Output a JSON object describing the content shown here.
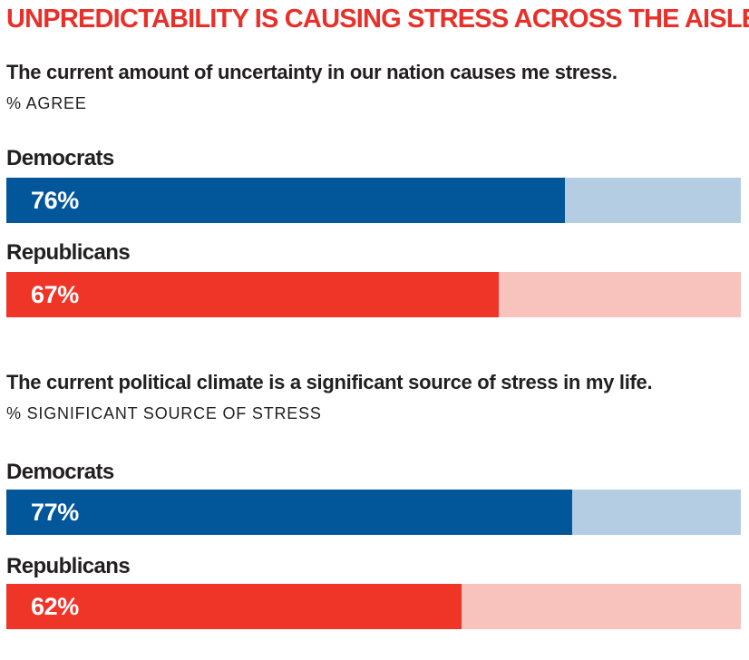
{
  "title": "UNPREDICTABILITY IS CAUSING STRESS ACROSS THE AISLE",
  "colors": {
    "title": "#e8302a",
    "democrat_fill": "#02569a",
    "democrat_track": "#b5cde2",
    "republican_fill": "#ef3428",
    "republican_track": "#f8c3bd"
  },
  "chart_data": [
    {
      "type": "bar",
      "title": "The current amount of uncertainty in our nation causes me stress.",
      "ylabel": "% AGREE",
      "categories": [
        "Democrats",
        "Republicans"
      ],
      "values": [
        76,
        67
      ],
      "value_labels": [
        "76%",
        "67%"
      ],
      "ylim": [
        0,
        100
      ]
    },
    {
      "type": "bar",
      "title": "The current political climate is a significant source of stress in my life.",
      "ylabel": "% SIGNIFICANT SOURCE OF STRESS",
      "categories": [
        "Democrats",
        "Republicans"
      ],
      "values": [
        77,
        62
      ],
      "value_labels": [
        "77%",
        "62%"
      ],
      "ylim": [
        0,
        100
      ]
    }
  ]
}
